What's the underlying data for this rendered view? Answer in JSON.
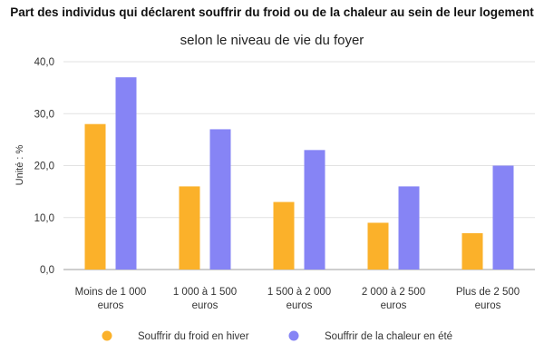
{
  "chart_data": {
    "type": "bar",
    "title": "Part des individus qui déclarent souffrir du froid ou de la chaleur au sein de leur logement",
    "subtitle": "selon le niveau de vie du foyer",
    "xlabel": "",
    "ylabel": "Unité : %",
    "ylim": [
      0,
      40
    ],
    "yticks": [
      "0,0",
      "10,0",
      "20,0",
      "30,0",
      "40,0"
    ],
    "categories": [
      [
        "Moins de 1 000",
        "euros"
      ],
      [
        "1 000 à 1 500",
        "euros"
      ],
      [
        "1 500 à 2 000",
        "euros"
      ],
      [
        "2 000 à 2 500",
        "euros"
      ],
      [
        "Plus de 2 500",
        "euros"
      ]
    ],
    "series": [
      {
        "name": "Souffrir du froid en hiver",
        "color": "#FBB12A",
        "values": [
          28,
          16,
          13,
          9,
          7
        ]
      },
      {
        "name": "Souffrir de la chaleur en été",
        "color": "#8684F5",
        "values": [
          37,
          27,
          23,
          16,
          20
        ]
      }
    ],
    "grid": true,
    "legend_position": "bottom"
  }
}
